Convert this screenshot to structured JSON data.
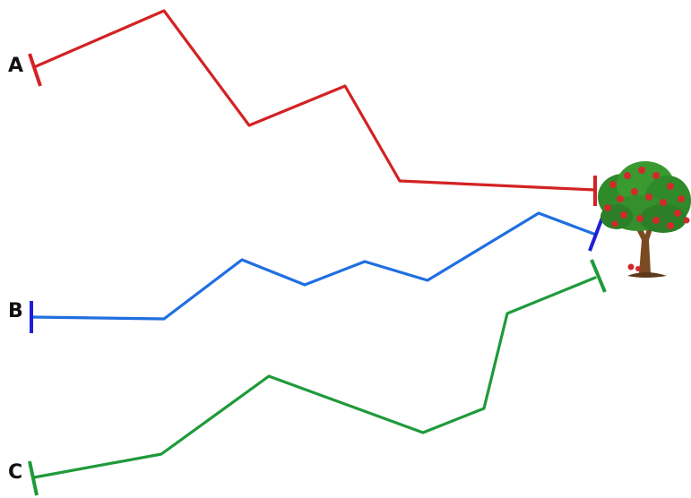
{
  "colors": {
    "A": "#d32224",
    "B": "#1f6fe0",
    "C": "#1f9a3a"
  },
  "paths": [
    {
      "id": "A",
      "label": "A"
    },
    {
      "id": "B",
      "label": "B"
    },
    {
      "id": "C",
      "label": "C"
    }
  ],
  "destination_icon": "apple-tree-icon"
}
